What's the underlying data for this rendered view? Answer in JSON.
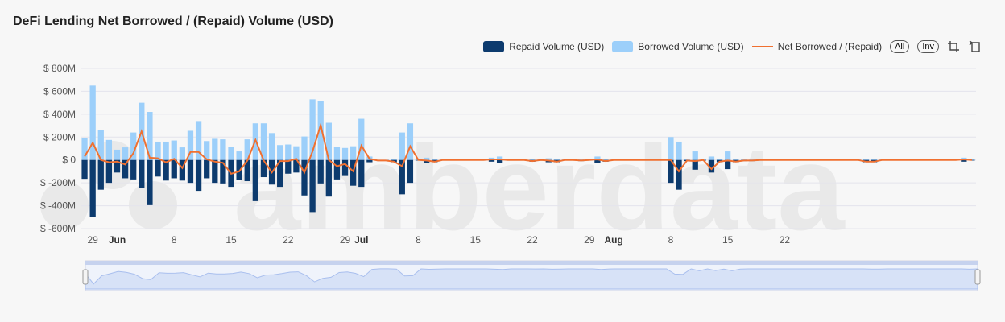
{
  "title": "DeFi Lending Net Borrowed / (Repaid) Volume (USD)",
  "watermark": "amberdata",
  "legend": {
    "repaid_label": "Repaid Volume (USD)",
    "borrowed_label": "Borrowed Volume (USD)",
    "net_label": "Net Borrowed / (Repaid)",
    "all_label": "All",
    "inv_label": "Inv"
  },
  "colors": {
    "repaid": "#0d3b6e",
    "borrowed": "#9ccffa",
    "net": "#f07030",
    "grid": "#e4e4ec",
    "navigator_fill": "#d7e2f7",
    "navigator_series": "#a9bfee"
  },
  "chart_data": {
    "type": "bar",
    "y_unit": "USD (millions)",
    "ylim": [
      -600,
      800
    ],
    "y_ticks": [
      {
        "value": 800,
        "label": "$ 800M"
      },
      {
        "value": 600,
        "label": "$ 600M"
      },
      {
        "value": 400,
        "label": "$ 400M"
      },
      {
        "value": 200,
        "label": "$ 200M"
      },
      {
        "value": 0,
        "label": "$ 0"
      },
      {
        "value": -200,
        "label": "$ -200M"
      },
      {
        "value": -400,
        "label": "$ -400M"
      },
      {
        "value": -600,
        "label": "$ -600M"
      }
    ],
    "x_start": "2023-05-28",
    "x_ticks": [
      {
        "date": "2023-05-29",
        "label": "29",
        "bold": false
      },
      {
        "date": "2023-06-01",
        "label": "Jun",
        "bold": true
      },
      {
        "date": "2023-06-08",
        "label": "8",
        "bold": false
      },
      {
        "date": "2023-06-15",
        "label": "15",
        "bold": false
      },
      {
        "date": "2023-06-22",
        "label": "22",
        "bold": false
      },
      {
        "date": "2023-06-29",
        "label": "29",
        "bold": false
      },
      {
        "date": "2023-07-01",
        "label": "Jul",
        "bold": true
      },
      {
        "date": "2023-07-08",
        "label": "8",
        "bold": false
      },
      {
        "date": "2023-07-15",
        "label": "15",
        "bold": false
      },
      {
        "date": "2023-07-22",
        "label": "22",
        "bold": false
      },
      {
        "date": "2023-07-29",
        "label": "29",
        "bold": false
      },
      {
        "date": "2023-08-01",
        "label": "Aug",
        "bold": true
      },
      {
        "date": "2023-08-08",
        "label": "8",
        "bold": false
      },
      {
        "date": "2023-08-15",
        "label": "15",
        "bold": false
      },
      {
        "date": "2023-08-22",
        "label": "22",
        "bold": false
      }
    ],
    "series": [
      {
        "name": "Borrowed Volume (USD)",
        "type": "bar",
        "values": [
          195,
          650,
          265,
          175,
          90,
          110,
          240,
          500,
          420,
          160,
          160,
          170,
          110,
          255,
          340,
          165,
          185,
          180,
          115,
          75,
          180,
          320,
          320,
          235,
          130,
          135,
          120,
          205,
          530,
          515,
          325,
          115,
          105,
          120,
          360,
          30,
          0,
          0,
          5,
          240,
          320,
          5,
          20,
          5,
          5,
          5,
          5,
          5,
          5,
          5,
          20,
          30,
          5,
          5,
          5,
          5,
          5,
          15,
          5,
          5,
          5,
          5,
          5,
          30,
          5,
          5,
          5,
          5,
          5,
          5,
          5,
          5,
          200,
          160,
          5,
          75,
          5,
          30,
          5,
          75,
          5,
          5,
          5,
          5,
          5,
          5,
          5,
          5,
          5,
          5,
          5,
          5,
          5,
          5,
          5,
          5,
          5,
          5,
          5,
          5,
          5,
          5,
          5,
          5,
          5,
          5,
          5,
          5,
          20,
          5
        ]
      },
      {
        "name": "Repaid Volume (USD)",
        "type": "bar",
        "values": [
          -165,
          -495,
          -260,
          -200,
          -110,
          -160,
          -170,
          -245,
          -395,
          -145,
          -180,
          -160,
          -180,
          -200,
          -270,
          -160,
          -200,
          -205,
          -235,
          -175,
          -185,
          -360,
          -150,
          -215,
          -235,
          -120,
          -110,
          -310,
          -455,
          -205,
          -320,
          -170,
          -140,
          -225,
          -235,
          -20,
          -5,
          -5,
          -20,
          -300,
          -200,
          -5,
          -25,
          -20,
          -5,
          -5,
          -5,
          -5,
          -5,
          -5,
          -15,
          -25,
          -5,
          -5,
          -5,
          -15,
          -5,
          -20,
          -20,
          -5,
          -5,
          -10,
          -5,
          -25,
          -15,
          -5,
          -5,
          -5,
          -5,
          -5,
          -5,
          -5,
          -200,
          -260,
          -10,
          -85,
          -5,
          -110,
          -20,
          -80,
          -20,
          -10,
          -10,
          -5,
          -5,
          -5,
          -5,
          -5,
          -5,
          -5,
          -5,
          -5,
          -5,
          -5,
          -5,
          -5,
          -20,
          -20,
          -5,
          -5,
          -5,
          -5,
          -5,
          -5,
          -5,
          -5,
          -5,
          -5,
          -15,
          -5
        ]
      },
      {
        "name": "Net Borrowed / (Repaid)",
        "type": "line",
        "values": [
          30,
          150,
          0,
          -20,
          -15,
          -40,
          60,
          250,
          20,
          15,
          -20,
          10,
          -70,
          70,
          70,
          5,
          -15,
          -25,
          -120,
          -100,
          -5,
          175,
          -5,
          -110,
          -10,
          -10,
          10,
          -110,
          75,
          305,
          0,
          -55,
          -35,
          -100,
          125,
          10,
          -5,
          -5,
          -15,
          -55,
          120,
          0,
          -5,
          -15,
          0,
          0,
          0,
          0,
          0,
          0,
          5,
          5,
          0,
          0,
          0,
          -10,
          0,
          -5,
          -15,
          0,
          0,
          -5,
          0,
          5,
          -10,
          0,
          0,
          0,
          0,
          0,
          0,
          0,
          0,
          -100,
          -5,
          -10,
          0,
          -80,
          -15,
          -5,
          -15,
          -5,
          -5,
          0,
          0,
          0,
          0,
          0,
          0,
          0,
          0,
          0,
          0,
          0,
          0,
          0,
          -15,
          -15,
          0,
          0,
          0,
          0,
          0,
          0,
          0,
          0,
          0,
          0,
          5,
          0
        ]
      }
    ]
  }
}
